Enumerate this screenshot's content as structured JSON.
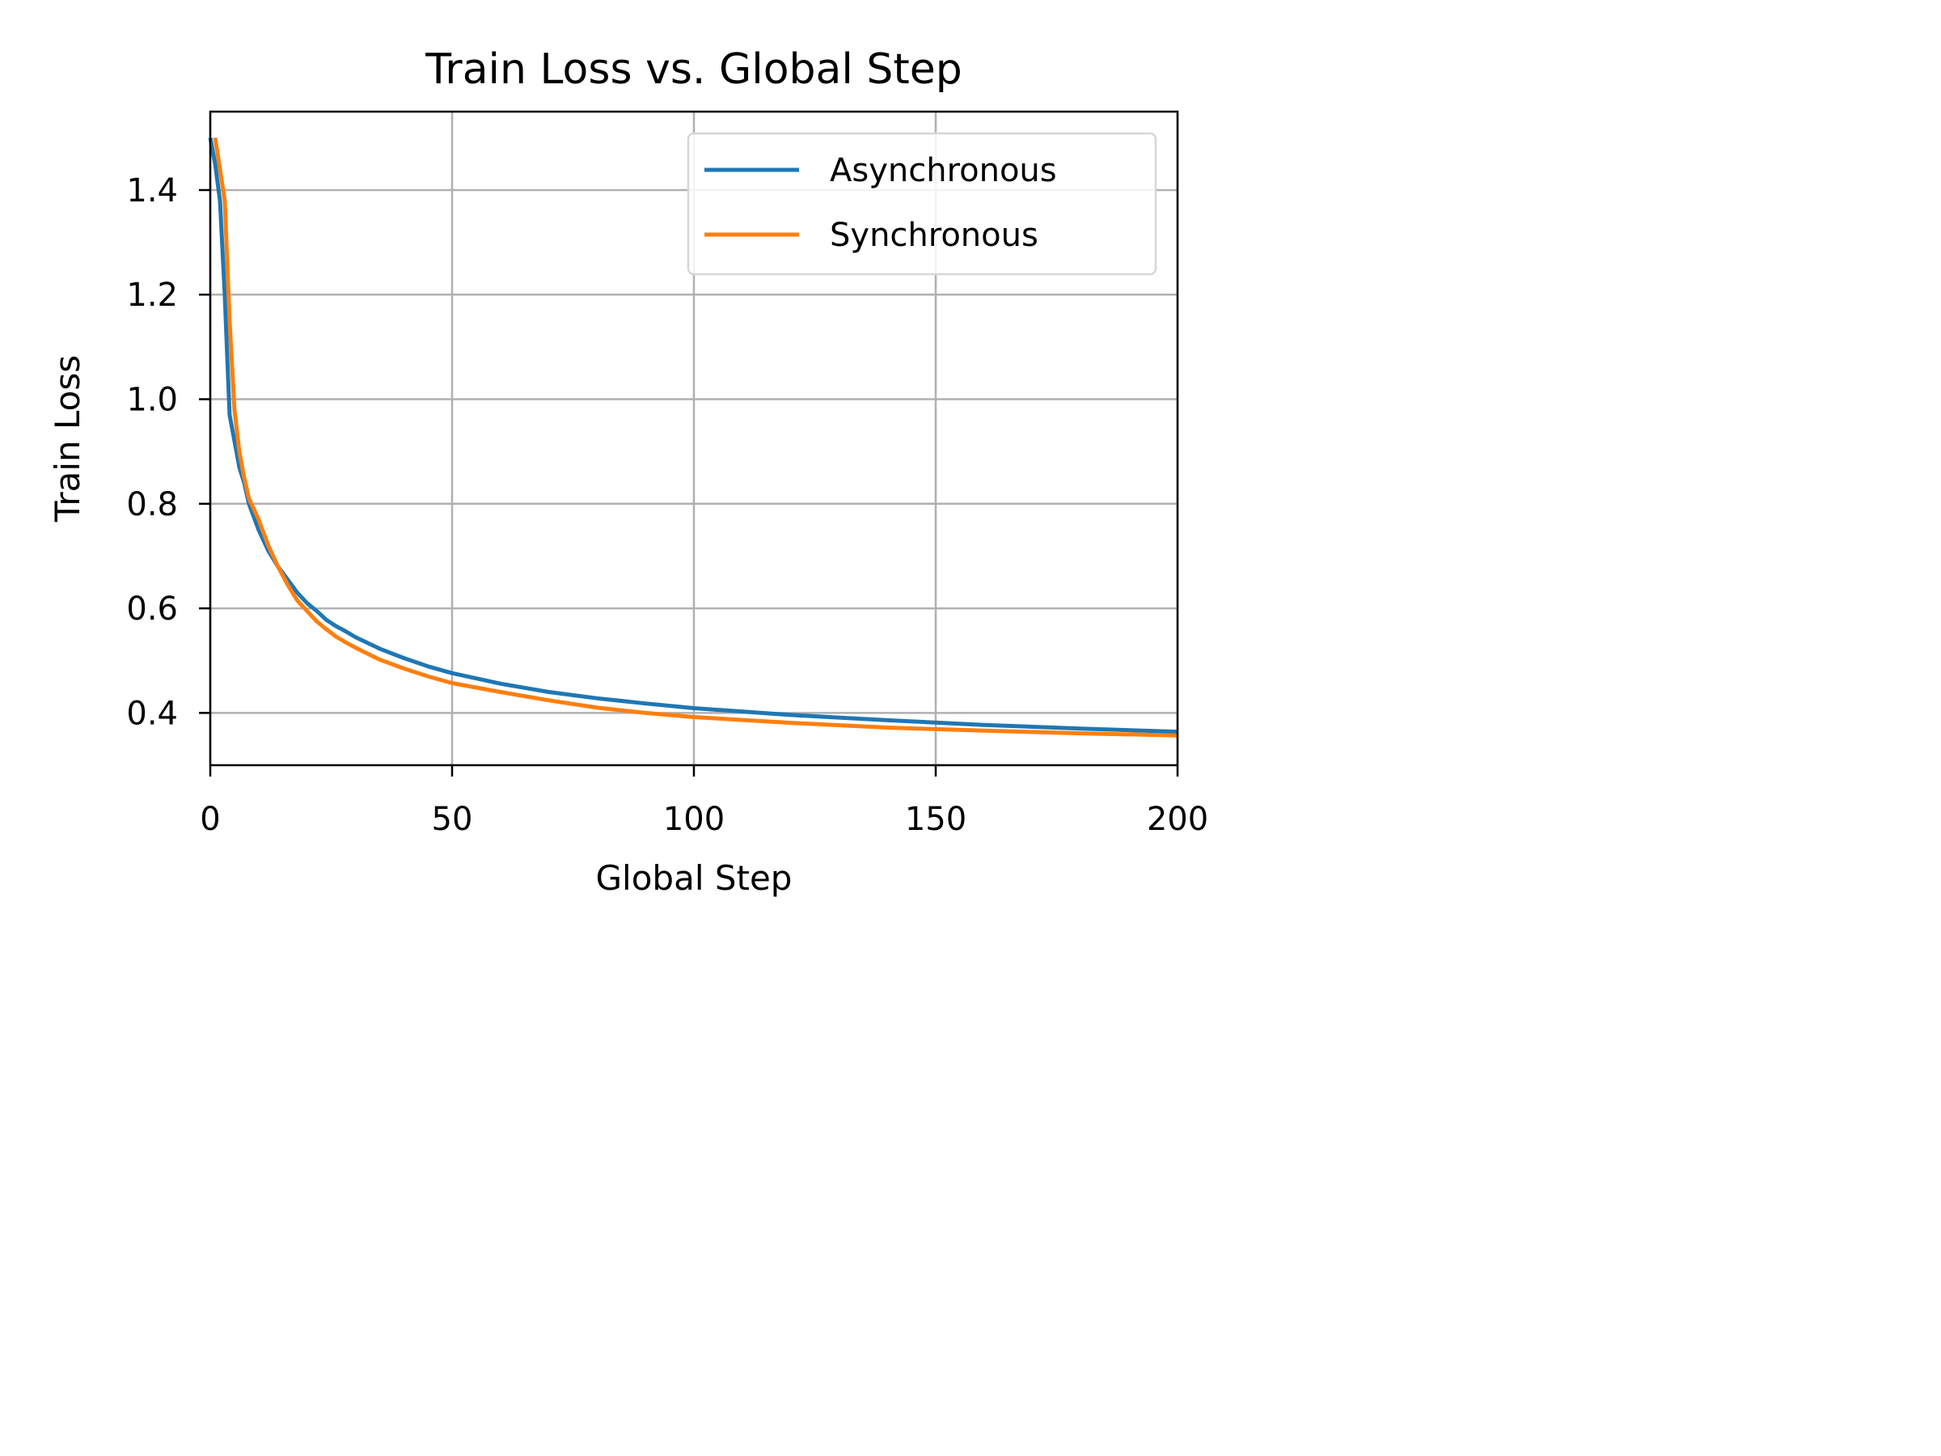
{
  "chart_data": {
    "type": "line",
    "title": "Train Loss vs. Global Step",
    "xlabel": "Global Step",
    "ylabel": "Train Loss",
    "xlim": [
      0,
      200
    ],
    "ylim": [
      0.3,
      1.55
    ],
    "xticks": [
      0,
      50,
      100,
      150,
      200
    ],
    "xtick_labels": [
      "0",
      "50",
      "100",
      "150",
      "200"
    ],
    "yticks": [
      0.4,
      0.6,
      0.8,
      1.0,
      1.2,
      1.4
    ],
    "ytick_labels": [
      "0.4",
      "0.6",
      "0.8",
      "1.0",
      "1.2",
      "1.4"
    ],
    "grid": true,
    "legend_position": "top-right",
    "series": [
      {
        "name": "Asynchronous",
        "color": "#1f77b4",
        "x": [
          0,
          1,
          2,
          3,
          4,
          5,
          6,
          7,
          8,
          10,
          12,
          14,
          16,
          18,
          20,
          22,
          24,
          26,
          28,
          30,
          35,
          40,
          45,
          50,
          60,
          70,
          80,
          90,
          100,
          120,
          140,
          160,
          180,
          200
        ],
        "y": [
          1.5,
          1.45,
          1.38,
          1.2,
          0.97,
          0.92,
          0.87,
          0.84,
          0.8,
          0.75,
          0.71,
          0.68,
          0.655,
          0.63,
          0.61,
          0.595,
          0.578,
          0.566,
          0.556,
          0.545,
          0.523,
          0.505,
          0.489,
          0.476,
          0.456,
          0.44,
          0.428,
          0.418,
          0.409,
          0.396,
          0.386,
          0.377,
          0.37,
          0.364
        ]
      },
      {
        "name": "Synchronous",
        "color": "#ff7f0e",
        "x": [
          1,
          2,
          3,
          4,
          5,
          6,
          7,
          8,
          10,
          12,
          14,
          16,
          18,
          20,
          22,
          24,
          26,
          28,
          30,
          35,
          40,
          45,
          50,
          60,
          70,
          80,
          90,
          100,
          120,
          140,
          160,
          180,
          200
        ],
        "y": [
          1.5,
          1.44,
          1.38,
          1.15,
          0.98,
          0.9,
          0.85,
          0.81,
          0.77,
          0.72,
          0.68,
          0.645,
          0.615,
          0.595,
          0.575,
          0.56,
          0.546,
          0.535,
          0.525,
          0.502,
          0.485,
          0.47,
          0.457,
          0.44,
          0.424,
          0.41,
          0.4,
          0.392,
          0.381,
          0.372,
          0.366,
          0.361,
          0.357
        ]
      }
    ]
  }
}
